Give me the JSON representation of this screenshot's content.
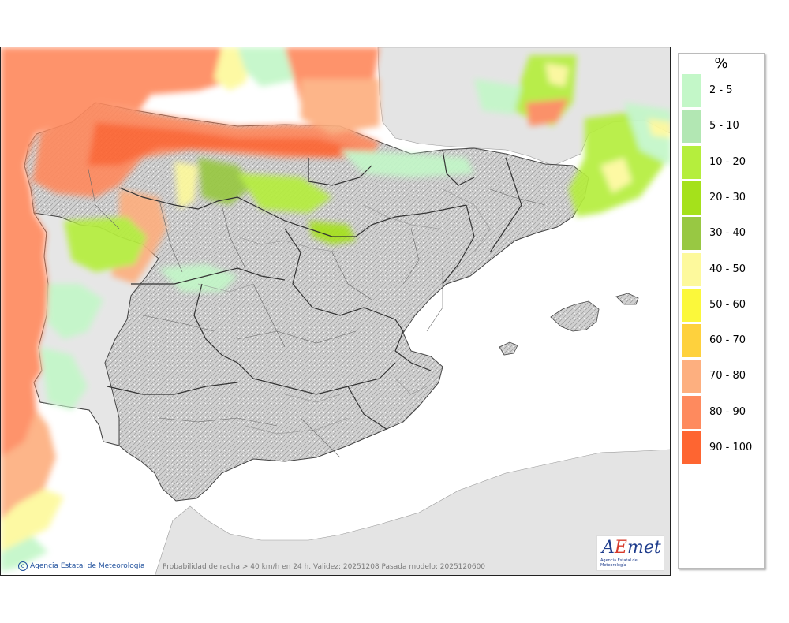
{
  "map": {
    "credit": "Agencia Estatal de Meteorología",
    "caption": "Probabilidad de racha > 40 km/h en 24 h. Validez: 20251208 Pasada modelo: 2025120600",
    "logo_text": "AEmet",
    "logo_subtitle": "Agencia Estatal de Meteorología",
    "colors": {
      "sea": "#ffffff",
      "land_outside": "#e4e4e4",
      "land_study": "#d2d2d2",
      "border": "#333333",
      "relief": "#8c8c8c"
    }
  },
  "legend": {
    "title": "%",
    "items": [
      {
        "label": "2 - 5",
        "color": "#c3f7c8"
      },
      {
        "label": "5 - 10",
        "color": "#b2e7b3"
      },
      {
        "label": "10 - 20",
        "color": "#b5ee3d"
      },
      {
        "label": "20 - 30",
        "color": "#a5e11b"
      },
      {
        "label": "30 - 40",
        "color": "#98c843"
      },
      {
        "label": "40 - 50",
        "color": "#fdf99c"
      },
      {
        "label": "50 - 60",
        "color": "#fbf83b"
      },
      {
        "label": "60 - 70",
        "color": "#fed13d"
      },
      {
        "label": "70 - 80",
        "color": "#fdaf7f"
      },
      {
        "label": "80 - 90",
        "color": "#fe8a5e"
      },
      {
        "label": "90 - 100",
        "color": "#fe6531"
      }
    ]
  }
}
